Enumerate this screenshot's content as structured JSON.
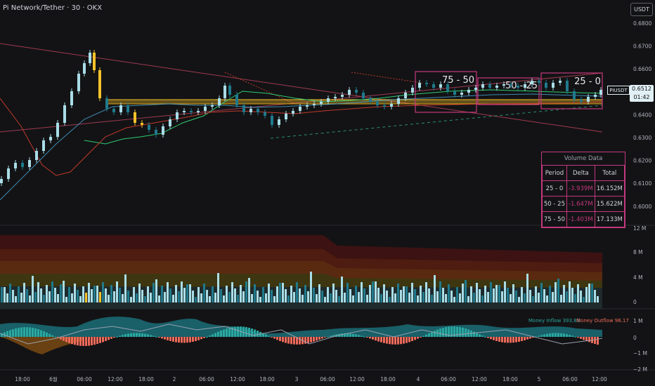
{
  "header": {
    "title": "Pi Network/Tether · 30 · OKX",
    "currency_button": "USDT"
  },
  "price_axis": {
    "labels": [
      "0.6800",
      "0.6700",
      "0.6600",
      "0.6500",
      "0.6400",
      "0.6300",
      "0.6200",
      "0.6100",
      "0.6000"
    ],
    "current_symbol": "PIUSDT",
    "current_price": "0.6512",
    "countdown": "01:42"
  },
  "volume_axis": {
    "labels": [
      "12 M",
      "8 M",
      "4 M",
      "0"
    ]
  },
  "flow_axis": {
    "labels": [
      "1 M",
      "0",
      "−1 M",
      "−2 M"
    ]
  },
  "time_axis": {
    "labels": [
      "18:00",
      "6월",
      "06:00",
      "12:00",
      "18:00",
      "2",
      "06:00",
      "12:00",
      "18:00",
      "3",
      "06:00",
      "12:00",
      "18:00",
      "4",
      "06:00",
      "12:00",
      "18:00",
      "5",
      "06:00",
      "12:00"
    ]
  },
  "boxes": [
    {
      "label": "75 - 50"
    },
    {
      "label": "50 - 25"
    },
    {
      "label": "25 - 0"
    }
  ],
  "money_flow": {
    "inflow_label": "Money Inflow 393.83",
    "outflow_label": "Money Outflow 96.17"
  },
  "volume_table": {
    "title": "Volume Data",
    "headers": [
      "Period",
      "Delta",
      "Total"
    ],
    "rows": [
      {
        "period": "25 - 0",
        "delta": "-3.939M",
        "total": "16.152M"
      },
      {
        "period": "50 - 25",
        "delta": "-1.647M",
        "total": "15.622M"
      },
      {
        "period": "75 - 50",
        "delta": "-1.403M",
        "total": "17.133M"
      }
    ]
  },
  "colors": {
    "background": "#131315",
    "bull_candle": "#a9dde7",
    "bear_candle": "#1f7a8c",
    "highlight": "#f7c22a",
    "box": "#c4387f",
    "inflow": "#2aa8a0",
    "outflow": "#ef6a5a"
  }
}
